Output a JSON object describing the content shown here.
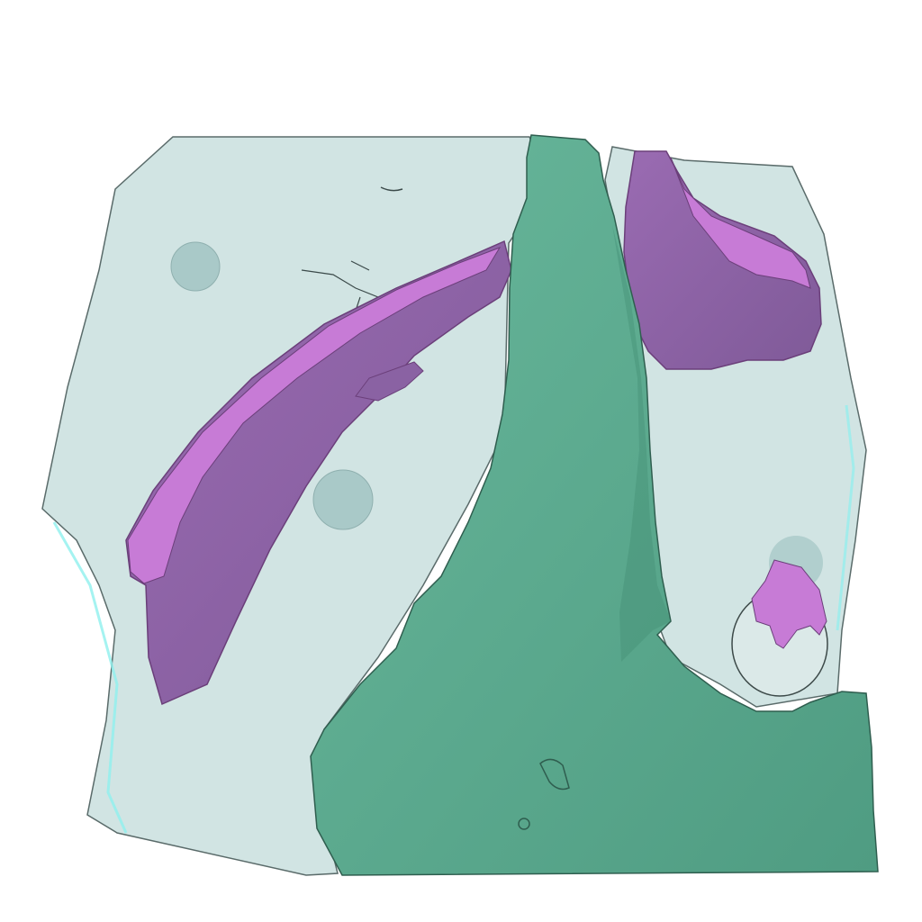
{
  "scene": {
    "description_type": "3d-segmentation-render",
    "colors": {
      "background": "#ffffff",
      "volume_fill": "#cfe3e1",
      "volume_edge": "#5a6b6a",
      "volume_rim": "#8ff0ee",
      "vessel_fill": "#5fae93",
      "vessel_dark": "#3f8a70",
      "vessel_edge": "#2f5e4f",
      "lesion_light": "#c77bd6",
      "lesion_dark": "#8a62a3",
      "lesion_edge": "#6b3f7a",
      "bubble_fill": "#a9c9c8"
    }
  }
}
